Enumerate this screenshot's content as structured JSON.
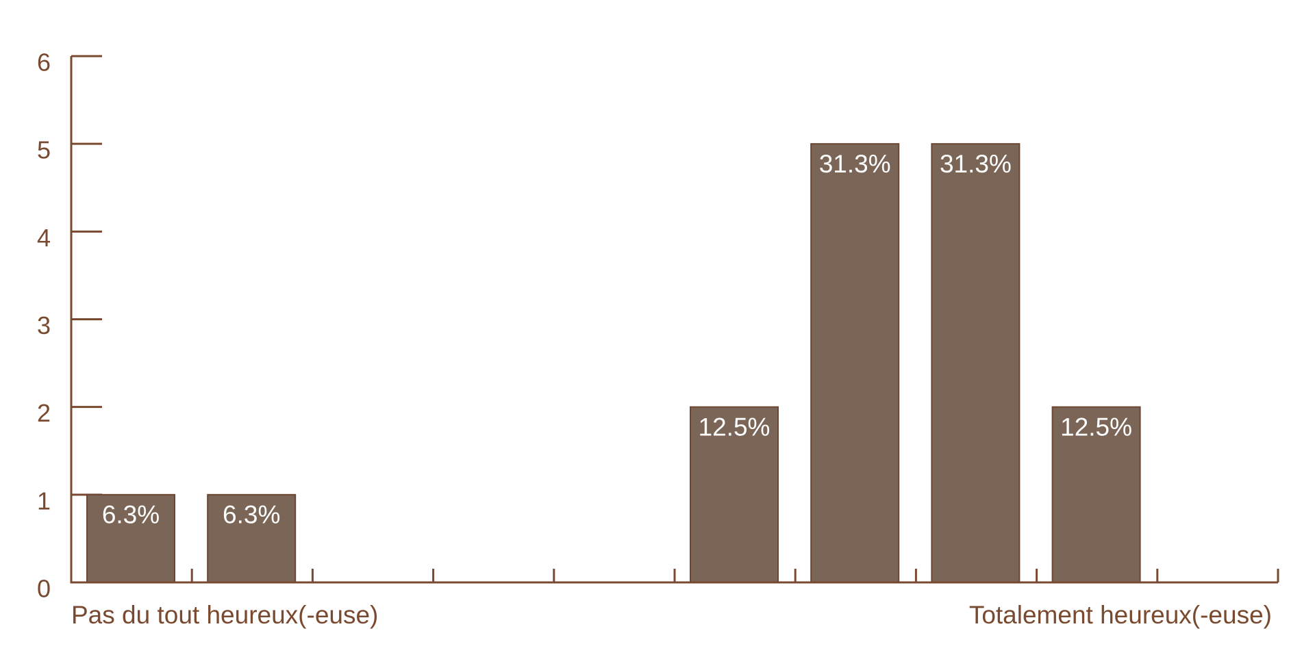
{
  "chart_data": {
    "type": "bar",
    "categories": [
      null,
      null,
      null,
      null,
      null,
      null,
      null,
      null,
      null,
      null
    ],
    "values": [
      1,
      1,
      0,
      0,
      0,
      2,
      5,
      5,
      2,
      0
    ],
    "bar_labels": [
      "6.3%",
      "6.3%",
      null,
      null,
      null,
      "12.5%",
      "31.3%",
      "31.3%",
      "12.5%",
      null
    ],
    "color": "#7a6556",
    "ylim": [
      0,
      6
    ],
    "yticks": [
      0,
      1,
      2,
      3,
      4,
      5,
      6
    ],
    "annotations": [
      "Pas du tout heureux(-euse)",
      "Totalement heureux(-euse)"
    ]
  }
}
